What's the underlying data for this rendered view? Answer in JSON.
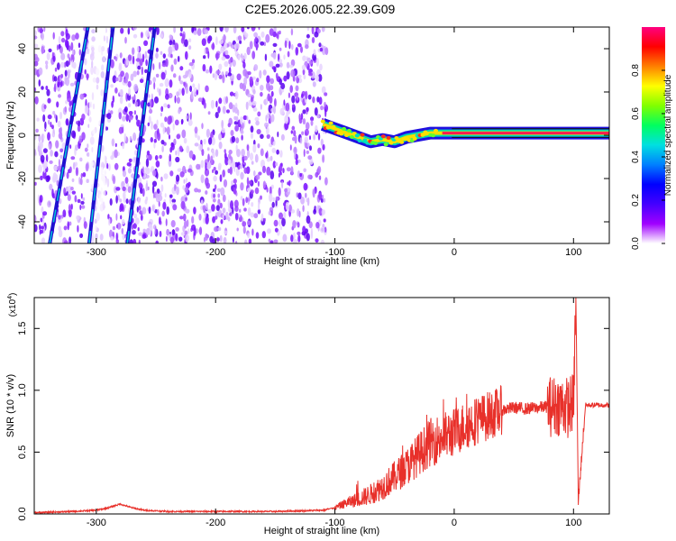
{
  "chart_data": [
    {
      "type": "heatmap",
      "title": "C2E5.2026.005.22.39.G09",
      "xlabel": "Height of straight line (km)",
      "ylabel": "Frequency (Hz)",
      "xlim": [
        -352,
        130
      ],
      "ylim": [
        -50,
        50
      ],
      "xticks": [
        -300,
        -200,
        -100,
        0,
        100
      ],
      "yticks": [
        -40,
        -20,
        0,
        20,
        40
      ],
      "colorbar": {
        "label": "Normalized spectral amplitude",
        "range": [
          0,
          1
        ],
        "ticks": [
          "0.0",
          "0.2",
          "0.4",
          "0.6",
          "0.8"
        ],
        "colors": [
          "#ffffff",
          "#a000ff",
          "#4400ff",
          "#0000ff",
          "#0080ff",
          "#00e0e0",
          "#00ff60",
          "#80ff00",
          "#ffff00",
          "#ff8000",
          "#ff0000",
          "#ff0080"
        ]
      },
      "features": {
        "noise_region": [
          -352,
          -107
        ],
        "signal_track": {
          "x": [
            -110,
            -100,
            -90,
            -80,
            -70,
            -60,
            -50,
            -40,
            -30,
            -20,
            -10,
            0,
            20,
            60,
            100,
            130
          ],
          "y": [
            5,
            3,
            1,
            -1,
            -3,
            -2,
            -3,
            -1,
            0,
            1,
            1,
            1,
            1,
            1,
            1,
            1
          ]
        },
        "diagonal_streaks": [
          {
            "x": [
              -339,
              -307
            ],
            "y": [
              -50,
              50
            ]
          },
          {
            "x": [
              -306,
              -286
            ],
            "y": [
              -50,
              50
            ]
          },
          {
            "x": [
              -274,
              -251
            ],
            "y": [
              -50,
              50
            ]
          }
        ]
      }
    },
    {
      "type": "line",
      "xlabel": "Height of straight line (km)",
      "ylabel": "SNR (10 * v/v)",
      "yscale_label": "(x10",
      "yscale_exp": "4",
      "xlim": [
        -352,
        130
      ],
      "ylim": [
        0,
        1.75
      ],
      "xticks": [
        -300,
        -200,
        -100,
        0,
        100
      ],
      "yticks": [
        "0.0",
        "0.5",
        "1.0",
        "1.5"
      ],
      "series": [
        {
          "name": "SNR",
          "color": "#e8302a",
          "x": [
            -352,
            -320,
            -300,
            -290,
            -280,
            -270,
            -260,
            -240,
            -200,
            -150,
            -110,
            -100,
            -90,
            -80,
            -70,
            -60,
            -50,
            -40,
            -30,
            -20,
            -10,
            0,
            10,
            20,
            30,
            40,
            50,
            60,
            70,
            80,
            90,
            95,
            100,
            102,
            104,
            110,
            120,
            130
          ],
          "y": [
            0.01,
            0.02,
            0.03,
            0.05,
            0.08,
            0.05,
            0.03,
            0.02,
            0.02,
            0.02,
            0.03,
            0.05,
            0.09,
            0.12,
            0.16,
            0.22,
            0.3,
            0.38,
            0.48,
            0.58,
            0.62,
            0.66,
            0.72,
            0.76,
            0.8,
            0.84,
            0.86,
            0.85,
            0.86,
            0.87,
            0.88,
            0.86,
            0.9,
            1.75,
            0.1,
            0.88,
            0.88,
            0.88
          ]
        }
      ]
    }
  ]
}
